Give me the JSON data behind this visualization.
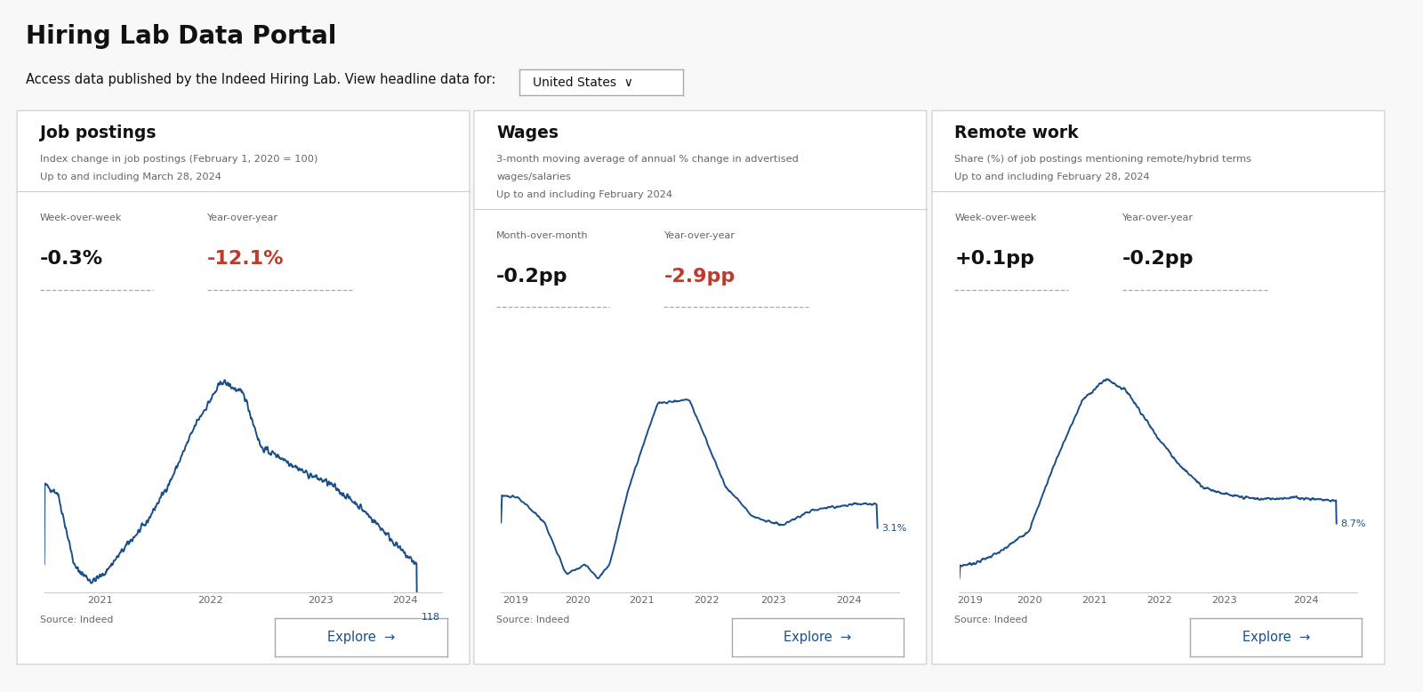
{
  "bg_color": "#f8f8f8",
  "card_bg": "#ffffff",
  "card_border": "#d4d4d4",
  "title": "Hiring Lab Data Portal",
  "subtitle": "Access data published by the Indeed Hiring Lab. View headline data for:",
  "line_color": "#1a4f8a",
  "red_color": "#c0392b",
  "dark_text": "#111111",
  "gray_text": "#666666",
  "light_gray": "#999999",
  "card1": {
    "title": "Job postings",
    "desc1": "Index change in job postings (February 1, 2020 = 100)",
    "desc2": "Up to and including March 28, 2024",
    "stat1_label": "Week-over-week",
    "stat1_value": "-0.3%",
    "stat1_color": "#111111",
    "stat2_label": "Year-over-year",
    "stat2_value": "-12.1%",
    "stat2_color": "#c0392b",
    "end_label": "118",
    "source": "Source: Indeed",
    "xtick_labels": [
      "2021",
      "2022",
      "2023",
      "2024"
    ]
  },
  "card2": {
    "title": "Wages",
    "desc1": "3-month moving average of annual % change in advertised",
    "desc2": "wages/salaries",
    "desc3": "Up to and including February 2024",
    "stat1_label": "Month-over-month",
    "stat1_value": "-0.2pp",
    "stat1_color": "#111111",
    "stat2_label": "Year-over-year",
    "stat2_value": "-2.9pp",
    "stat2_color": "#c0392b",
    "end_label": "3.1%",
    "source": "Source: Indeed",
    "xtick_labels": [
      "2019",
      "2020",
      "2021",
      "2022",
      "2023",
      "2024"
    ]
  },
  "card3": {
    "title": "Remote work",
    "desc1": "Share (%) of job postings mentioning remote/hybrid terms",
    "desc2": "Up to and including February 28, 2024",
    "stat1_label": "Week-over-week",
    "stat1_value": "+0.1pp",
    "stat1_color": "#111111",
    "stat2_label": "Year-over-year",
    "stat2_value": "-0.2pp",
    "stat2_color": "#111111",
    "end_label": "8.7%",
    "source": "Source: Indeed",
    "xtick_labels": [
      "2019",
      "2020",
      "2021",
      "2022",
      "2023",
      "2024"
    ]
  }
}
